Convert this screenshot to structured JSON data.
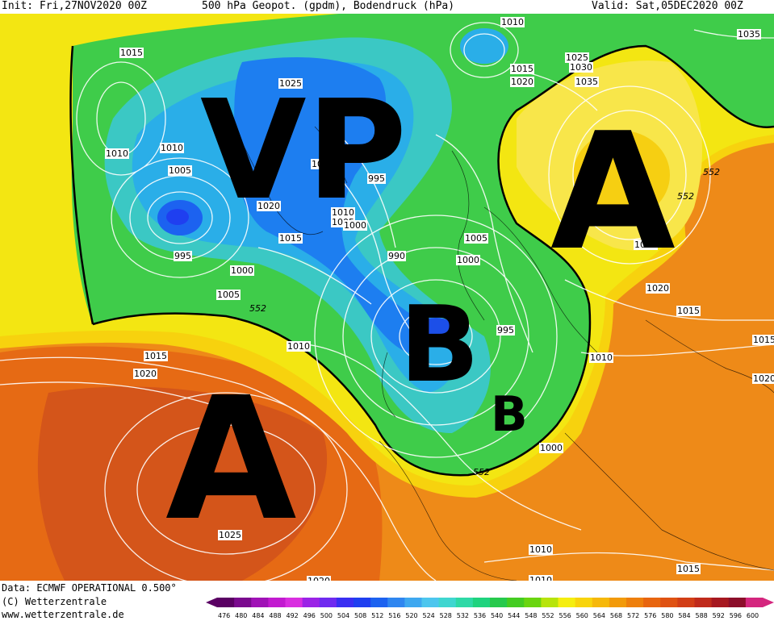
{
  "header": {
    "init": "Init: Fri,27NOV2020 00Z",
    "title": "500 hPa Geopot. (gpdm), Bodendruck (hPa)",
    "valid": "Valid: Sat,05DEC2020 00Z"
  },
  "footer": {
    "data": "Data: ECMWF OPERATIONAL 0.500°",
    "copyright": "(C) Wetterzentrale",
    "url": "www.wetterzentrale.de"
  },
  "overlay_labels": {
    "vp": "VP",
    "a_northeast": "A",
    "a_southwest": "A",
    "b_large": "B",
    "b_small": "B"
  },
  "isobar_labels": [
    "1015",
    "1010",
    "1010",
    "1005",
    "995",
    "1020",
    "1015",
    "1000",
    "1005",
    "552",
    "1015",
    "1020",
    "1010",
    "1030",
    "995",
    "1010",
    "1005",
    "1000",
    "990",
    "1000",
    "1005",
    "995",
    "1010",
    "1010",
    "1015",
    "1025",
    "1030",
    "1020",
    "1035",
    "1035",
    "552",
    "552",
    "1030",
    "1020",
    "1015",
    "1015",
    "1020",
    "1000",
    "552",
    "1025",
    "1010",
    "1010",
    "1015",
    "1020",
    "1025"
  ],
  "colorscale": {
    "labels": [
      "476",
      "480",
      "484",
      "488",
      "492",
      "496",
      "500",
      "504",
      "508",
      "512",
      "516",
      "520",
      "524",
      "528",
      "532",
      "536",
      "540",
      "544",
      "548",
      "552",
      "556",
      "560",
      "564",
      "568",
      "572",
      "576",
      "580",
      "584",
      "588",
      "592",
      "596",
      "600"
    ],
    "colors": [
      "#5a0063",
      "#7a0a8e",
      "#a012b6",
      "#c21ad0",
      "#d92ee0",
      "#9b23e6",
      "#6f2af0",
      "#3a2ef2",
      "#1f3ff0",
      "#1c62f0",
      "#2f86f0",
      "#3ea8f0",
      "#4dc6ee",
      "#3fd6d0",
      "#2ed9a6",
      "#1fd37e",
      "#27c94c",
      "#44cc22",
      "#6ad50f",
      "#b7e40a",
      "#f5ee10",
      "#f8d40c",
      "#f6b80a",
      "#f29a0a",
      "#ee7f0c",
      "#e8650f",
      "#df5212",
      "#d23e16",
      "#c02a1b",
      "#a61820",
      "#8c0e2a",
      "#d4267e"
    ]
  }
}
